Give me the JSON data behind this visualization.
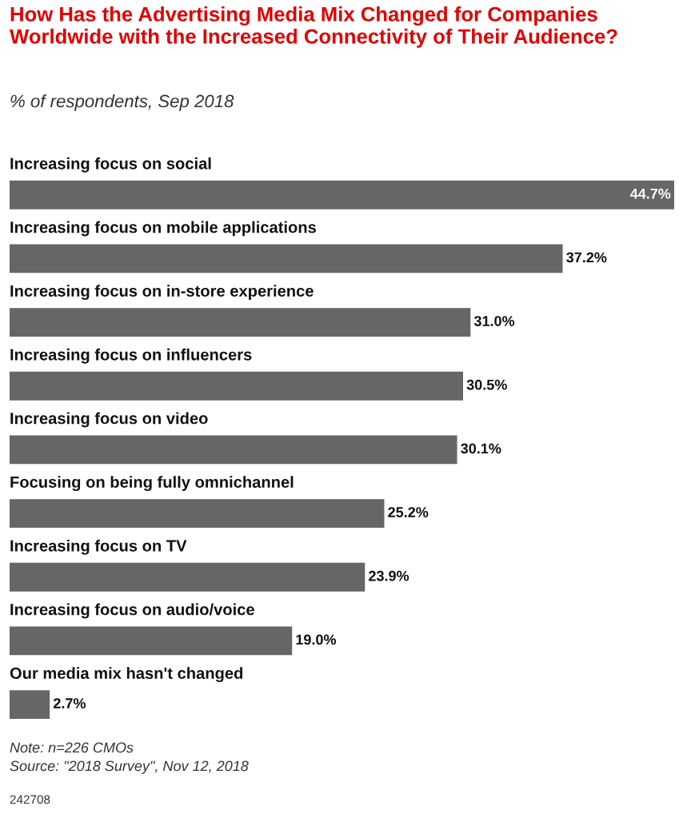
{
  "chart_data": {
    "type": "bar",
    "orientation": "horizontal",
    "title": "How Has the Advertising Media Mix Changed for Companies Worldwide with the Increased Connectivity of Their Audience?",
    "subtitle": "% of respondents, Sep 2018",
    "categories": [
      "Increasing focus on social",
      "Increasing focus on mobile applications",
      "Increasing focus on in-store experience",
      "Increasing focus on influencers",
      "Increasing focus on video",
      "Focusing on being fully omnichannel",
      "Increasing focus on TV",
      "Increasing focus on audio/voice",
      "Our media mix hasn't changed"
    ],
    "values": [
      44.7,
      37.2,
      31.0,
      30.5,
      30.1,
      25.2,
      23.9,
      19.0,
      2.7
    ],
    "value_labels": [
      "44.7%",
      "37.2%",
      "31.0%",
      "30.5%",
      "30.1%",
      "25.2%",
      "23.9%",
      "19.0%",
      "2.7%"
    ],
    "color": "#666666",
    "annotations": [
      "Note: n=226 CMOs",
      "Source: \"2018 Survey\", Nov 12, 2018",
      "242708"
    ]
  }
}
